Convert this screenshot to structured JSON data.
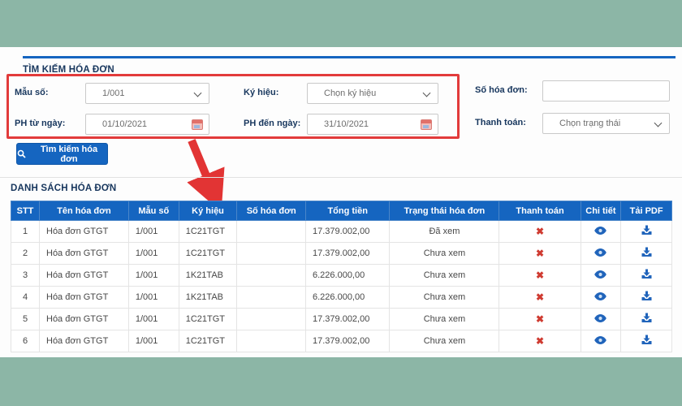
{
  "colors": {
    "frame_teal": "#8cb6a6",
    "accent_blue": "#1565c0",
    "title_navy": "#17365d",
    "annotation_red": "#e23b3b",
    "payment_x_red": "#cf3b31"
  },
  "search_section": {
    "title": "TÌM KIẾM HÓA ĐƠN",
    "fields": {
      "mau_so": {
        "label": "Mẫu số:",
        "value": "1/001"
      },
      "ky_hieu": {
        "label": "Ký hiệu:",
        "value": "Chọn ký hiệu"
      },
      "so_hoa_don": {
        "label": "Số hóa đơn:",
        "value": ""
      },
      "ph_tu_ngay": {
        "label": "PH từ ngày:",
        "value": "01/10/2021"
      },
      "ph_den_ngay": {
        "label": "PH đến ngày:",
        "value": "31/10/2021"
      },
      "thanh_toan": {
        "label": "Thanh toán:",
        "value": "Chọn trạng thái"
      }
    },
    "search_button_label": "Tìm kiếm hóa đơn"
  },
  "list_section": {
    "title": "DANH SÁCH HÓA ĐƠN",
    "columns": [
      "STT",
      "Tên hóa đơn",
      "Mẫu số",
      "Ký hiệu",
      "Số hóa đơn",
      "Tổng tiền",
      "Trạng thái hóa đơn",
      "Thanh toán",
      "Chi tiết",
      "Tải PDF"
    ],
    "rows": [
      {
        "stt": "1",
        "ten": "Hóa đơn GTGT",
        "mau_so": "1/001",
        "ky_hieu": "1C21TGT",
        "so_hoa_don": "",
        "tong_tien": "17.379.002,00",
        "trang_thai": "Đã xem"
      },
      {
        "stt": "2",
        "ten": "Hóa đơn GTGT",
        "mau_so": "1/001",
        "ky_hieu": "1C21TGT",
        "so_hoa_don": "",
        "tong_tien": "17.379.002,00",
        "trang_thai": "Chưa xem"
      },
      {
        "stt": "3",
        "ten": "Hóa đơn GTGT",
        "mau_so": "1/001",
        "ky_hieu": "1K21TAB",
        "so_hoa_don": "",
        "tong_tien": "6.226.000,00",
        "trang_thai": "Chưa xem"
      },
      {
        "stt": "4",
        "ten": "Hóa đơn GTGT",
        "mau_so": "1/001",
        "ky_hieu": "1K21TAB",
        "so_hoa_don": "",
        "tong_tien": "6.226.000,00",
        "trang_thai": "Chưa xem"
      },
      {
        "stt": "5",
        "ten": "Hóa đơn GTGT",
        "mau_so": "1/001",
        "ky_hieu": "1C21TGT",
        "so_hoa_don": "",
        "tong_tien": "17.379.002,00",
        "trang_thai": "Chưa xem"
      },
      {
        "stt": "6",
        "ten": "Hóa đơn GTGT",
        "mau_so": "1/001",
        "ky_hieu": "1C21TGT",
        "so_hoa_don": "",
        "tong_tien": "17.379.002,00",
        "trang_thai": "Chưa xem"
      }
    ]
  }
}
